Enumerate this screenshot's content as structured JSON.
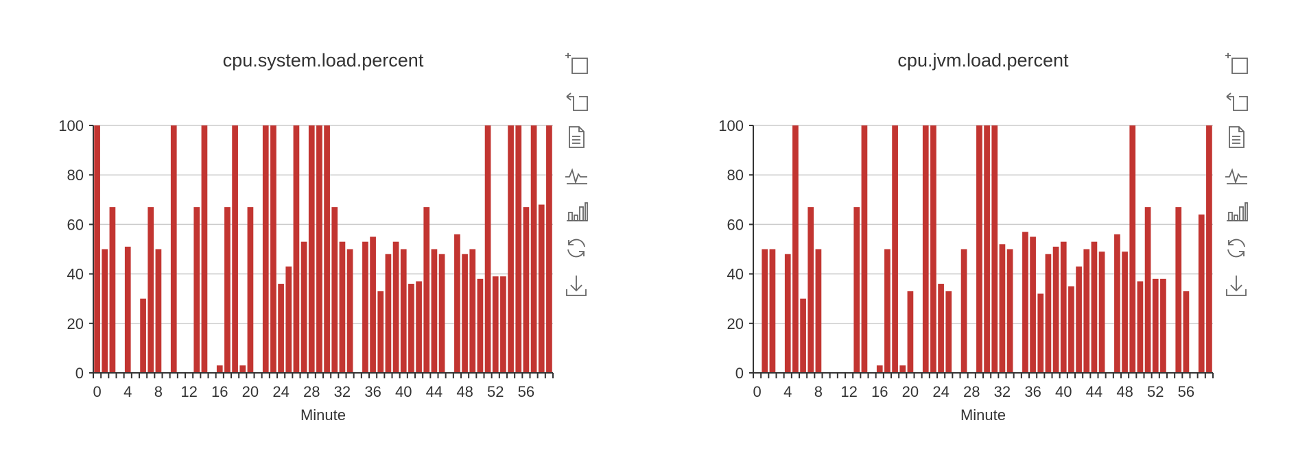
{
  "chart_data": [
    {
      "type": "bar",
      "title": "cpu.system.load.percent",
      "xlabel": "Minute",
      "ylabel": "",
      "ylim": [
        0,
        100
      ],
      "y_ticks": [
        "0",
        "20",
        "40",
        "60",
        "80",
        "100"
      ],
      "x_tick_labels": [
        "0",
        "4",
        "8",
        "12",
        "16",
        "20",
        "24",
        "28",
        "32",
        "36",
        "40",
        "44",
        "48",
        "52",
        "56"
      ],
      "categories": [
        0,
        1,
        2,
        3,
        4,
        5,
        6,
        7,
        8,
        9,
        10,
        11,
        12,
        13,
        14,
        15,
        16,
        17,
        18,
        19,
        20,
        21,
        22,
        23,
        24,
        25,
        26,
        27,
        28,
        29,
        30,
        31,
        32,
        33,
        34,
        35,
        36,
        37,
        38,
        39,
        40,
        41,
        42,
        43,
        44,
        45,
        46,
        47,
        48,
        49,
        50,
        51,
        52,
        53,
        54,
        55,
        56,
        57,
        58,
        59
      ],
      "values": [
        100,
        50,
        67,
        0,
        51,
        0,
        30,
        67,
        50,
        0,
        100,
        0,
        0,
        67,
        100,
        0,
        3,
        67,
        100,
        3,
        67,
        0,
        100,
        100,
        36,
        43,
        100,
        53,
        100,
        100,
        100,
        67,
        53,
        50,
        0,
        53,
        55,
        33,
        48,
        53,
        50,
        36,
        37,
        67,
        50,
        48,
        0,
        56,
        48,
        50,
        38,
        100,
        39,
        39,
        100,
        100,
        67,
        100,
        68,
        100
      ],
      "grid": true,
      "bar_color": "#c23531"
    },
    {
      "type": "bar",
      "title": "cpu.jvm.load.percent",
      "xlabel": "Minute",
      "ylabel": "",
      "ylim": [
        0,
        100
      ],
      "y_ticks": [
        "0",
        "20",
        "40",
        "60",
        "80",
        "100"
      ],
      "x_tick_labels": [
        "0",
        "4",
        "8",
        "12",
        "16",
        "20",
        "24",
        "28",
        "32",
        "36",
        "40",
        "44",
        "48",
        "52",
        "56"
      ],
      "categories": [
        0,
        1,
        2,
        3,
        4,
        5,
        6,
        7,
        8,
        9,
        10,
        11,
        12,
        13,
        14,
        15,
        16,
        17,
        18,
        19,
        20,
        21,
        22,
        23,
        24,
        25,
        26,
        27,
        28,
        29,
        30,
        31,
        32,
        33,
        34,
        35,
        36,
        37,
        38,
        39,
        40,
        41,
        42,
        43,
        44,
        45,
        46,
        47,
        48,
        49,
        50,
        51,
        52,
        53,
        54,
        55,
        56,
        57,
        58,
        59
      ],
      "values": [
        0,
        50,
        50,
        0,
        48,
        100,
        30,
        67,
        50,
        0,
        0,
        0,
        0,
        67,
        100,
        0,
        3,
        50,
        100,
        3,
        33,
        0,
        100,
        100,
        36,
        33,
        0,
        50,
        0,
        100,
        100,
        100,
        52,
        50,
        0,
        57,
        55,
        32,
        48,
        51,
        53,
        35,
        43,
        50,
        53,
        49,
        0,
        56,
        49,
        100,
        37,
        67,
        38,
        38,
        0,
        67,
        33,
        0,
        64,
        100
      ],
      "grid": true,
      "bar_color": "#c23531"
    }
  ],
  "toolbox": {
    "icons": [
      "zoom-icon",
      "zoom-reset-icon",
      "data-view-icon",
      "line-chart-icon",
      "bar-chart-icon",
      "restore-icon",
      "save-image-icon"
    ]
  }
}
